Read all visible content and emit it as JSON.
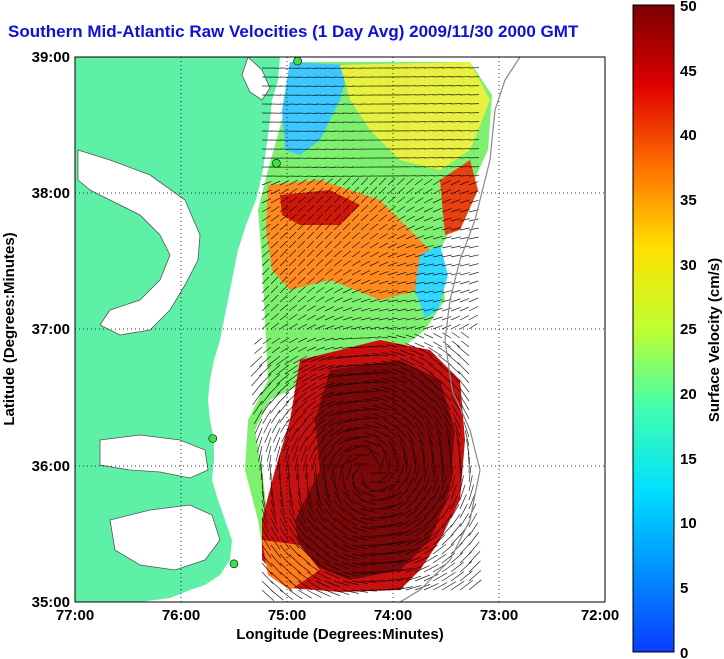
{
  "title": "Southern Mid-Atlantic Raw Velocities (1 Day Avg) 2009/11/30 2000 GMT",
  "map": {
    "xlabel": "Longitude (Degrees:Minutes)",
    "ylabel": "Latitude (Degrees:Minutes)",
    "x_ticks": [
      "77:00",
      "76:00",
      "75:00",
      "74:00",
      "73:00",
      "72:00"
    ],
    "y_ticks": [
      "39:00",
      "38:00",
      "37:00",
      "36:00",
      "35:00"
    ],
    "x_range": [
      -77,
      -72
    ],
    "y_range": [
      35,
      39
    ],
    "grid": "dotted",
    "land_color": "#5ff0a8"
  },
  "colorbar": {
    "label": "Surface Velocity (cm/s)",
    "ticks": [
      "50",
      "45",
      "40",
      "35",
      "30",
      "25",
      "20",
      "15",
      "10",
      "5",
      "0"
    ],
    "range": [
      0,
      50
    ],
    "colormap": "jet"
  },
  "stations": [
    {
      "lon": -74.9,
      "lat": 38.97
    },
    {
      "lon": -75.1,
      "lat": 38.22
    },
    {
      "lon": -75.7,
      "lat": 36.2
    },
    {
      "lon": -75.5,
      "lat": 35.28
    }
  ]
}
